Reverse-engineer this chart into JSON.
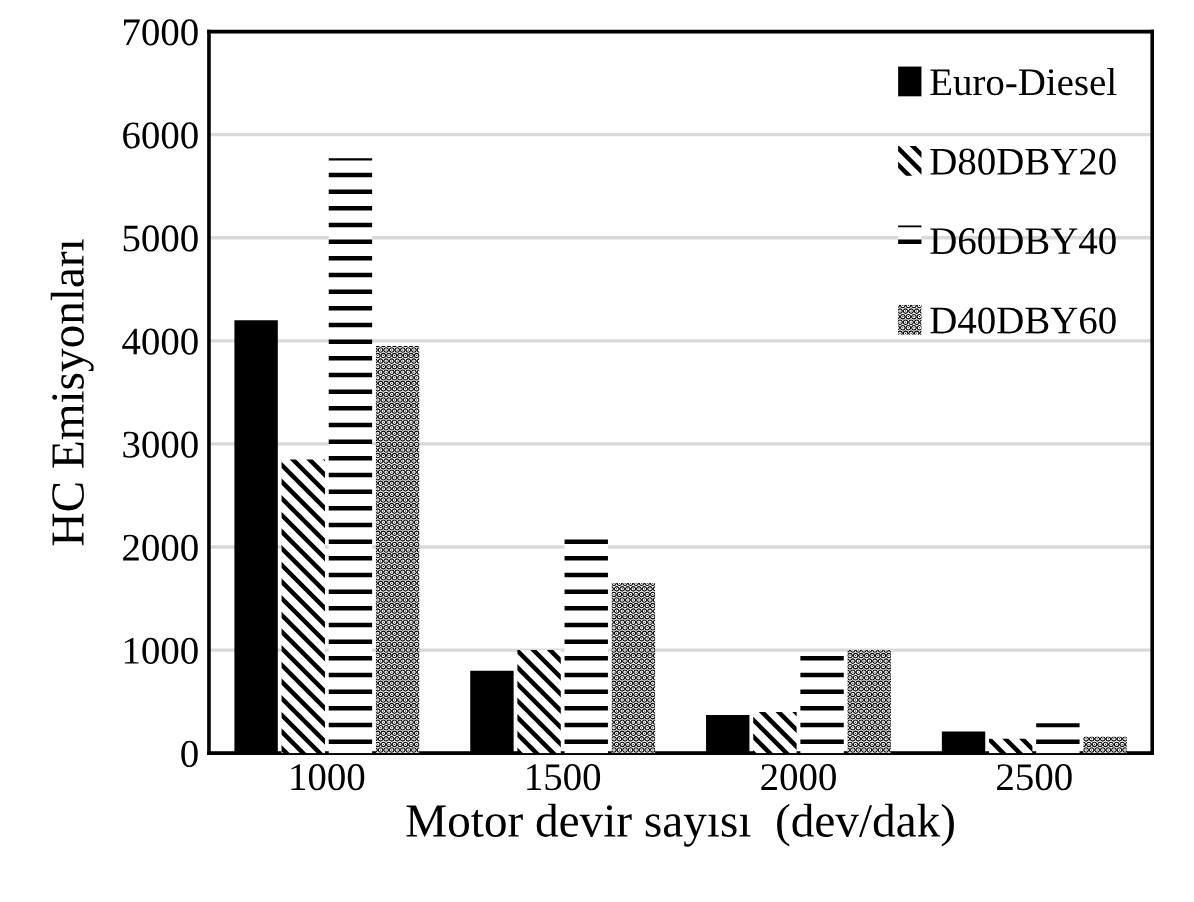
{
  "chart_data": {
    "type": "bar",
    "xlabel": "Motor devir sayısı  (dev/dak)",
    "ylabel": "HC Emisyonları",
    "categories": [
      "1000",
      "1500",
      "2000",
      "2500"
    ],
    "series": [
      {
        "name": "Euro-Diesel",
        "color": "#000000",
        "values": [
          4200,
          800,
          370,
          210
        ]
      },
      {
        "name": "D80DBY20",
        "color": "#000000",
        "values": [
          2850,
          1000,
          400,
          140
        ]
      },
      {
        "name": "D60DBY40",
        "color": "#000000",
        "values": [
          5770,
          2080,
          970,
          290
        ]
      },
      {
        "name": "D40DBY60",
        "color": "#000000",
        "values": [
          3950,
          1650,
          1000,
          160
        ]
      }
    ],
    "ylim": [
      0,
      7000
    ],
    "yticks": [
      0,
      1000,
      2000,
      3000,
      4000,
      5000,
      6000,
      7000
    ],
    "grid": "y",
    "legend": "top right"
  }
}
